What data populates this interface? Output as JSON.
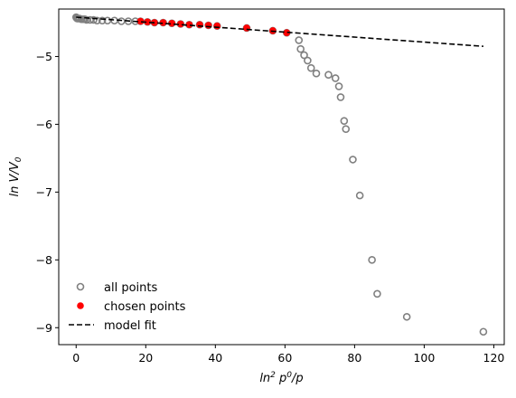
{
  "chart_data": {
    "type": "scatter",
    "title": "",
    "xlabel": "ln² p⁰/p",
    "ylabel": "ln V/V₀",
    "xlim": [
      -5,
      123
    ],
    "ylim": [
      -9.25,
      -4.3
    ],
    "x_ticks": [
      0,
      20,
      40,
      60,
      80,
      100,
      120
    ],
    "y_ticks": [
      -9,
      -8,
      -7,
      -6,
      -5
    ],
    "x_tick_labels": [
      "0",
      "20",
      "40",
      "60",
      "80",
      "100",
      "120"
    ],
    "y_tick_labels": [
      "−9",
      "−8",
      "−7",
      "−6",
      "−5"
    ],
    "grid": false,
    "legend_position": "lower-left",
    "legend": [
      "all points",
      "chosen points",
      "model fit"
    ],
    "series": [
      {
        "name": "all points",
        "kind": "scatter-hollow",
        "color": "#808080",
        "x": [
          0,
          0.1,
          0.3,
          0.6,
          1,
          1.5,
          2,
          2.5,
          3,
          4,
          5,
          6,
          7.5,
          9,
          11,
          13,
          15,
          17,
          18.5,
          20.5,
          22.5,
          25,
          27.5,
          30,
          32.5,
          35.5,
          38,
          40.5,
          49,
          56.5,
          60.5,
          64,
          64.5,
          65.5,
          66.5,
          67.5,
          69,
          72.5,
          74.5,
          75.5,
          76,
          77,
          77.5,
          79.5,
          81.5,
          85,
          86.5,
          95,
          117
        ],
        "y": [
          -4.42,
          -4.43,
          -4.44,
          -4.44,
          -4.44,
          -4.45,
          -4.45,
          -4.45,
          -4.46,
          -4.46,
          -4.46,
          -4.47,
          -4.47,
          -4.47,
          -4.47,
          -4.48,
          -4.48,
          -4.48,
          -4.48,
          -4.49,
          -4.5,
          -4.5,
          -4.51,
          -4.52,
          -4.53,
          -4.53,
          -4.54,
          -4.55,
          -4.58,
          -4.62,
          -4.65,
          -4.76,
          -4.89,
          -4.98,
          -5.06,
          -5.17,
          -5.25,
          -5.27,
          -5.32,
          -5.44,
          -5.6,
          -5.95,
          -6.07,
          -6.52,
          -7.05,
          -8,
          -8.5,
          -8.84,
          -9.06
        ]
      },
      {
        "name": "chosen points",
        "kind": "scatter-filled",
        "color": "#ff0000",
        "x": [
          18.5,
          20.5,
          22.5,
          25,
          27.5,
          30,
          32.5,
          35.5,
          38,
          40.5,
          49,
          56.5,
          60.5
        ],
        "y": [
          -4.48,
          -4.49,
          -4.5,
          -4.5,
          -4.51,
          -4.52,
          -4.53,
          -4.53,
          -4.54,
          -4.55,
          -4.58,
          -4.62,
          -4.65
        ]
      },
      {
        "name": "model fit",
        "kind": "line-dashed",
        "color": "#000000",
        "x": [
          0,
          117
        ],
        "y": [
          -4.42,
          -4.85
        ]
      }
    ]
  }
}
